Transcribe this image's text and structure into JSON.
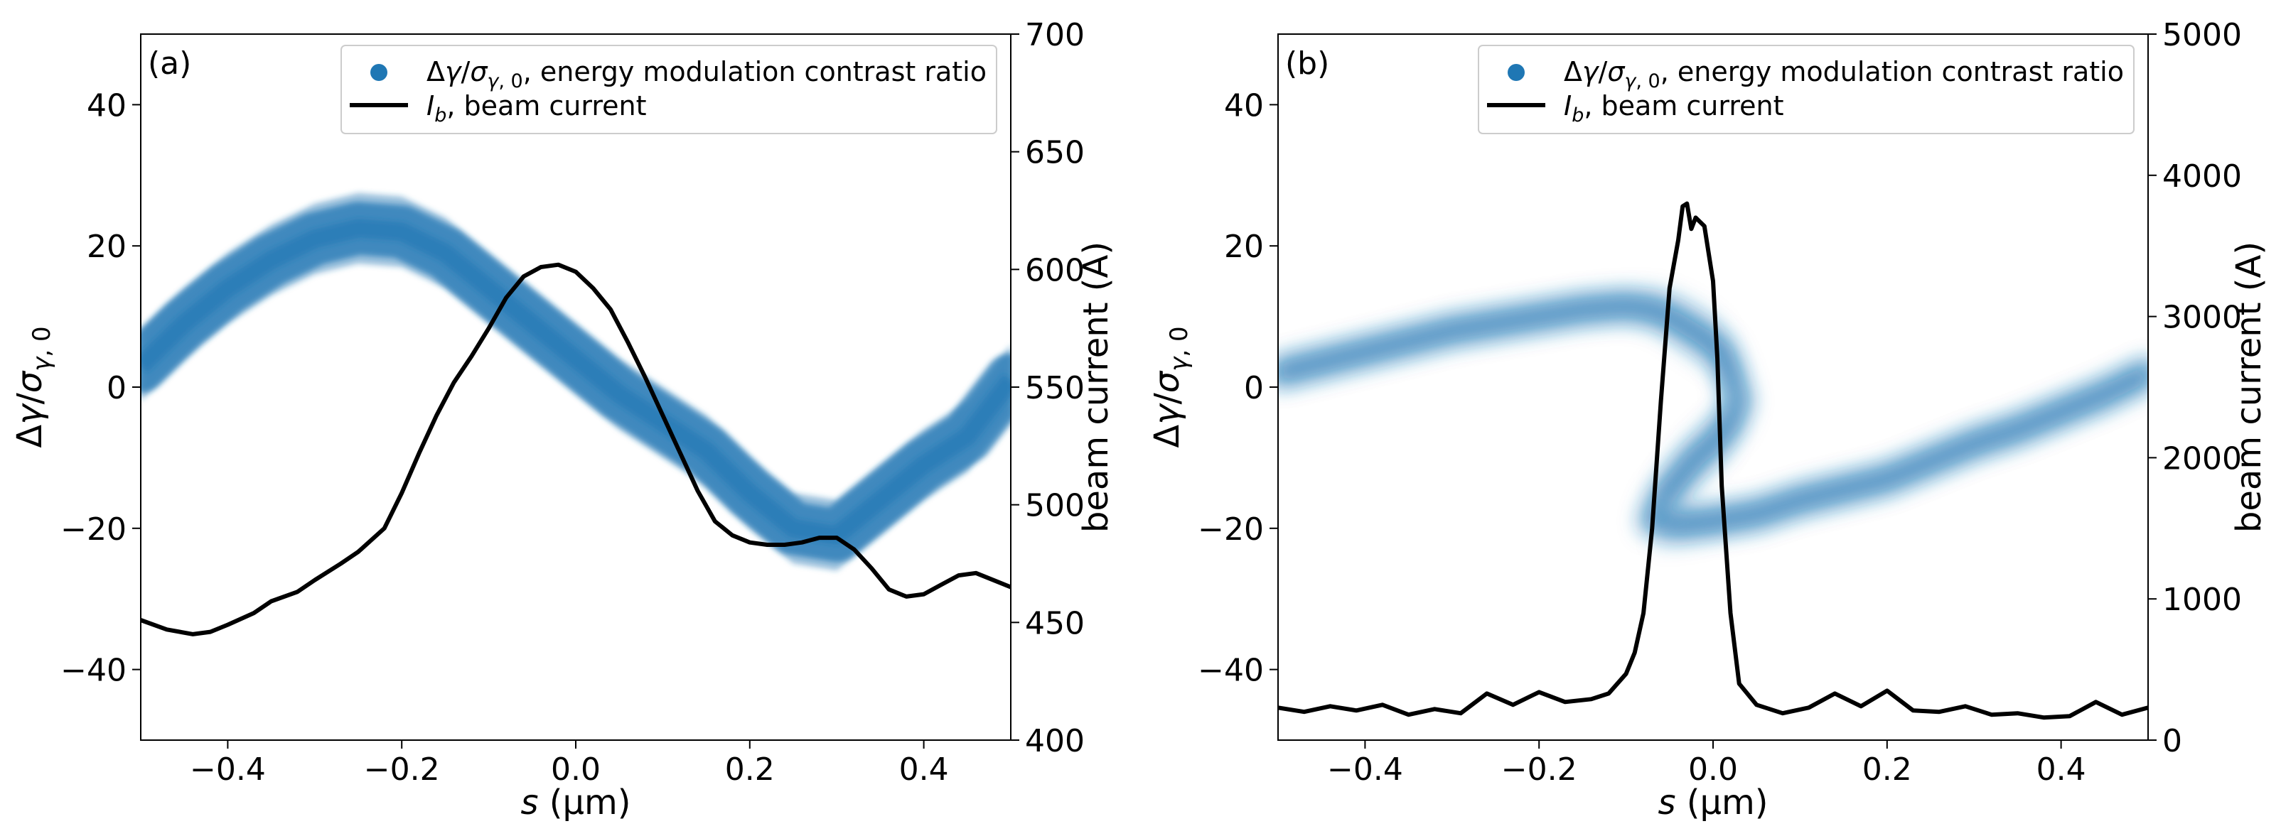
{
  "colors": {
    "scatter": "#1f77b4",
    "current": "#000000",
    "axes": "#000000",
    "legend_border": "#cccccc"
  },
  "chart_data": [
    {
      "type": "scatter",
      "panel_label": "(a)",
      "xlabel": "s (μm)",
      "xlabel_symbol": "s",
      "xlabel_unit": "(μm)",
      "ylabel": "Δγ/σγ,0",
      "y2label": "beam current (A)",
      "xlim": [
        -0.5,
        0.5
      ],
      "ylim": [
        -50,
        50
      ],
      "y2lim": [
        400,
        700
      ],
      "xticks": [
        -0.4,
        -0.2,
        0.0,
        0.2,
        0.4
      ],
      "xtick_labels": [
        "−0.4",
        "−0.2",
        "0.0",
        "0.2",
        "0.4"
      ],
      "yticks": [
        -40,
        -20,
        0,
        20,
        40
      ],
      "ytick_labels": [
        "−40",
        "−20",
        "0",
        "20",
        "40"
      ],
      "y2ticks": [
        400,
        450,
        500,
        550,
        600,
        650,
        700
      ],
      "y2tick_labels": [
        "400",
        "450",
        "500",
        "550",
        "600",
        "650",
        "700"
      ],
      "legend": {
        "position": "upper right",
        "entries": [
          {
            "label": "Δγ/σγ,0, energy modulation contrast ratio",
            "symbol": "Δγ/σγ,0",
            "text": ", energy modulation contrast ratio"
          },
          {
            "label": "Ib, beam current",
            "symbol": "Ib",
            "text": ", beam current"
          }
        ]
      },
      "series": [
        {
          "name": "Δγ/σγ,0, energy modulation contrast ratio",
          "kind": "band",
          "axis": "left",
          "x": [
            -0.5,
            -0.45,
            -0.4,
            -0.35,
            -0.3,
            -0.25,
            -0.2,
            -0.15,
            -0.1,
            -0.05,
            0.0,
            0.05,
            0.1,
            0.15,
            0.2,
            0.25,
            0.3,
            0.35,
            0.4,
            0.45,
            0.5
          ],
          "y": [
            3,
            9,
            14,
            18,
            21,
            22.5,
            22,
            19,
            14,
            9,
            4,
            -1,
            -5,
            -9,
            -15,
            -20,
            -21,
            -16,
            -11,
            -7,
            1
          ],
          "halfwidth": [
            5,
            5,
            5,
            5,
            5,
            5,
            5,
            5,
            5,
            5,
            5,
            5,
            5,
            5,
            5,
            5,
            5,
            5,
            5,
            5,
            5
          ]
        },
        {
          "name": "Ib, beam current",
          "kind": "line",
          "axis": "right",
          "x": [
            -0.5,
            -0.47,
            -0.44,
            -0.42,
            -0.4,
            -0.37,
            -0.35,
            -0.32,
            -0.3,
            -0.27,
            -0.25,
            -0.22,
            -0.2,
            -0.18,
            -0.16,
            -0.14,
            -0.12,
            -0.1,
            -0.08,
            -0.06,
            -0.04,
            -0.02,
            0.0,
            0.02,
            0.04,
            0.06,
            0.08,
            0.1,
            0.12,
            0.14,
            0.16,
            0.18,
            0.2,
            0.22,
            0.24,
            0.26,
            0.28,
            0.3,
            0.32,
            0.34,
            0.36,
            0.38,
            0.4,
            0.42,
            0.44,
            0.46,
            0.48,
            0.5
          ],
          "y": [
            451,
            447,
            445,
            446,
            449,
            454,
            459,
            463,
            468,
            475,
            480,
            490,
            505,
            522,
            538,
            552,
            563,
            575,
            588,
            597,
            601,
            602,
            599,
            592,
            583,
            569,
            554,
            538,
            522,
            506,
            493,
            487,
            484,
            483,
            483,
            484,
            486,
            486,
            481,
            473,
            464,
            461,
            462,
            466,
            470,
            471,
            468,
            465
          ]
        }
      ]
    },
    {
      "type": "scatter",
      "panel_label": "(b)",
      "xlabel": "s (μm)",
      "xlabel_symbol": "s",
      "xlabel_unit": "(μm)",
      "ylabel": "Δγ/σγ,0",
      "y2label": "beam current (A)",
      "xlim": [
        -0.5,
        0.5
      ],
      "ylim": [
        -50,
        50
      ],
      "y2lim": [
        0,
        5000
      ],
      "xticks": [
        -0.4,
        -0.2,
        0.0,
        0.2,
        0.4
      ],
      "xtick_labels": [
        "−0.4",
        "−0.2",
        "0.0",
        "0.2",
        "0.4"
      ],
      "yticks": [
        -40,
        -20,
        0,
        20,
        40
      ],
      "ytick_labels": [
        "−40",
        "−20",
        "0",
        "20",
        "40"
      ],
      "y2ticks": [
        0,
        1000,
        2000,
        3000,
        4000,
        5000
      ],
      "y2tick_labels": [
        "0",
        "1000",
        "2000",
        "3000",
        "4000",
        "5000"
      ],
      "legend": {
        "position": "upper right",
        "entries": [
          {
            "label": "Δγ/σγ,0, energy modulation contrast ratio",
            "symbol": "Δγ/σγ,0",
            "text": ", energy modulation contrast ratio"
          },
          {
            "label": "Ib, beam current",
            "symbol": "Ib",
            "text": ", beam current"
          }
        ]
      },
      "series": [
        {
          "name": "Δγ/σγ,0, energy modulation contrast ratio",
          "kind": "band",
          "axis": "left",
          "x": [
            -0.5,
            -0.45,
            -0.4,
            -0.35,
            -0.3,
            -0.25,
            -0.2,
            -0.15,
            -0.1,
            -0.07,
            -0.05,
            -0.03,
            -0.01,
            0.01,
            0.02,
            0.03,
            0.02,
            0.0,
            -0.02,
            -0.04,
            -0.06,
            -0.07,
            -0.04,
            0.0,
            0.05,
            0.1,
            0.15,
            0.2,
            0.25,
            0.3,
            0.35,
            0.4,
            0.45,
            0.5
          ],
          "y": [
            2,
            3.5,
            5,
            6.5,
            8,
            9,
            10,
            11,
            11.5,
            11,
            10,
            8.5,
            7,
            5,
            2,
            -2,
            -5,
            -8,
            -10,
            -13,
            -16,
            -19,
            -19.5,
            -19,
            -18,
            -16,
            -14.5,
            -13,
            -10.5,
            -8,
            -6,
            -3.5,
            -1,
            2
          ],
          "halfwidth": [
            2.5,
            2.5,
            2.5,
            2.5,
            2.5,
            2.5,
            2.5,
            2.5,
            2.5,
            3,
            3.5,
            4,
            4,
            4,
            4,
            4,
            4,
            4,
            4,
            4,
            4,
            3.5,
            3,
            2.5,
            2.5,
            2.5,
            2.5,
            2.5,
            2.5,
            2.5,
            2.5,
            2.5,
            2.5,
            2.5
          ]
        },
        {
          "name": "Ib, beam current",
          "kind": "line",
          "axis": "right",
          "x": [
            -0.5,
            -0.47,
            -0.44,
            -0.41,
            -0.38,
            -0.35,
            -0.32,
            -0.29,
            -0.26,
            -0.23,
            -0.2,
            -0.17,
            -0.14,
            -0.12,
            -0.1,
            -0.09,
            -0.08,
            -0.07,
            -0.06,
            -0.05,
            -0.04,
            -0.035,
            -0.03,
            -0.025,
            -0.02,
            -0.01,
            0.0,
            0.005,
            0.01,
            0.02,
            0.03,
            0.05,
            0.08,
            0.11,
            0.14,
            0.17,
            0.2,
            0.23,
            0.26,
            0.29,
            0.32,
            0.35,
            0.38,
            0.41,
            0.44,
            0.47,
            0.5
          ],
          "y": [
            230,
            200,
            240,
            210,
            250,
            180,
            220,
            190,
            330,
            250,
            340,
            270,
            290,
            330,
            470,
            620,
            900,
            1500,
            2400,
            3200,
            3540,
            3780,
            3800,
            3620,
            3700,
            3640,
            3250,
            2700,
            1800,
            900,
            400,
            250,
            190,
            230,
            330,
            240,
            350,
            210,
            200,
            240,
            180,
            190,
            160,
            170,
            270,
            180,
            230
          ]
        }
      ]
    }
  ]
}
